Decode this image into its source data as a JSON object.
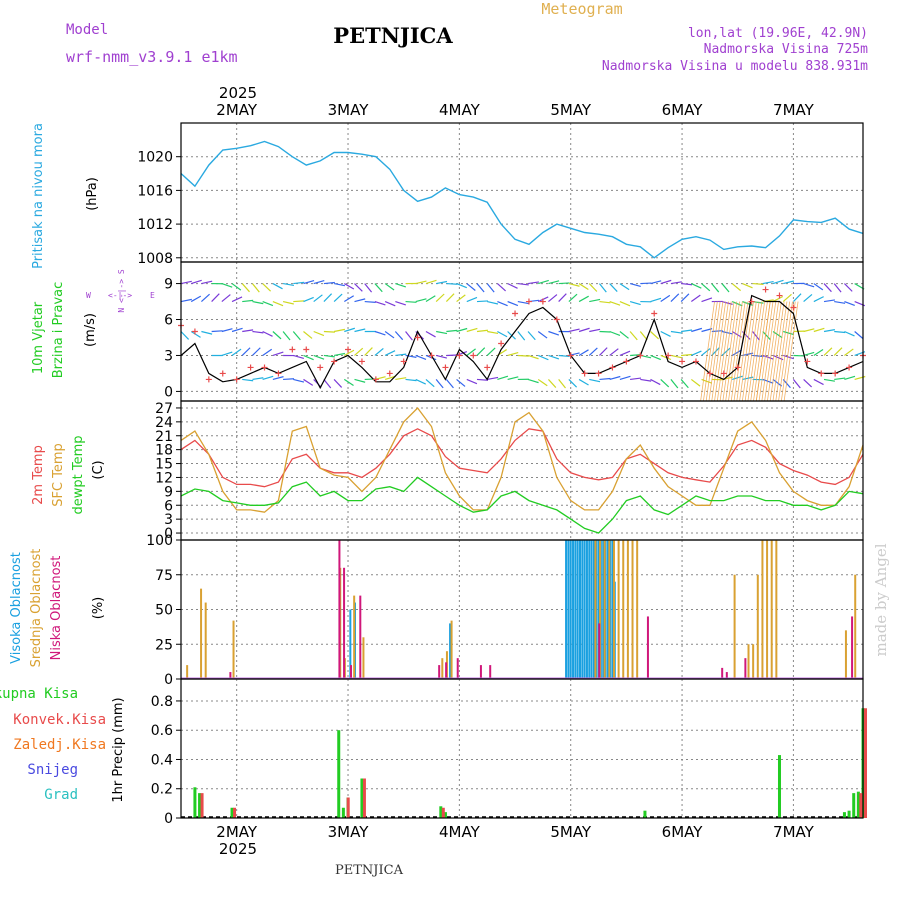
{
  "header": {
    "model_label": "Model",
    "model_name": "wrf-nmm_v3.9.1 e1km",
    "title": "PETNJICA",
    "meteogram_label": "Meteogram",
    "lonlat": "lon,lat (19.96E, 42.9N)",
    "altitude": "Nadmorska Visina 725m",
    "model_altitude": "Nadmorska Visina u modelu 838.931m",
    "year": "2025",
    "footer_title": "PETNJICA",
    "watermark": "made by Angel"
  },
  "colors": {
    "pressure": "#2aa9e0",
    "temp2m": "#e84b4b",
    "sfc_temp": "#d9a132",
    "dewpt": "#22cc22",
    "wind_speed": "#000000",
    "gust": "#e84b4b",
    "high_cloud": "#1aa0e0",
    "mid_cloud": "#d9a132",
    "low_cloud": "#d0177a",
    "total_precip": "#22cc22",
    "conv_precip": "#e84b4b",
    "frozen": "#f07820",
    "snow": "#4a4ae0",
    "grad": "#2ac0c0",
    "model_text": "#a040d0",
    "meteogram_text": "#e0b050"
  },
  "x_axis": {
    "day_labels": [
      "2MAY",
      "3MAY",
      "4MAY",
      "5MAY",
      "6MAY",
      "7MAY"
    ],
    "day_offsets_hours": [
      0,
      24,
      48,
      72,
      96,
      120
    ],
    "xlim_hours": [
      -12,
      135
    ]
  },
  "chart_data": [
    {
      "type": "line",
      "id": "pressure",
      "ylabel": "Pritisak na nivou mora",
      "unit": "(hPa)",
      "ylim": [
        1007.5,
        1024
      ],
      "yticks": [
        1008,
        1012,
        1016,
        1020
      ],
      "grid": true,
      "series": [
        {
          "x": [
            -12,
            -9,
            -6,
            -3,
            0,
            3,
            6,
            9,
            12,
            15,
            18,
            21,
            24,
            27,
            30,
            33,
            36,
            39,
            42,
            45,
            48,
            51,
            54,
            57,
            60,
            63,
            66,
            69,
            72,
            75,
            78,
            81,
            84,
            87,
            90,
            93,
            96,
            99,
            102,
            105,
            108,
            111,
            114,
            117,
            120,
            123,
            126,
            129,
            132,
            135
          ],
          "y": [
            1018,
            1016.5,
            1019,
            1020.8,
            1021,
            1021.3,
            1021.8,
            1021.2,
            1020,
            1019,
            1019.5,
            1020.5,
            1020.5,
            1020.3,
            1020,
            1018.5,
            1016,
            1014.7,
            1015.2,
            1016.3,
            1015.5,
            1015.2,
            1014.6,
            1012,
            1010.2,
            1009.6,
            1011,
            1012,
            1011.5,
            1011,
            1010.8,
            1010.5,
            1009.6,
            1009.3,
            1008,
            1009.2,
            1010.2,
            1010.5,
            1010.1,
            1009,
            1009.3,
            1009.4,
            1009.2,
            1010.6,
            1012.5,
            1012.3,
            1012.2,
            1012.7,
            1011.4,
            1010.9
          ]
        }
      ]
    },
    {
      "type": "line",
      "id": "wind",
      "ylabel": "10m Vjetar Brzina i Pravac",
      "unit": "(m/s)",
      "direction_legend": [
        "N",
        "S",
        "W",
        "E"
      ],
      "ylim": [
        -0.8,
        10.8
      ],
      "yticks": [
        0,
        3,
        6,
        9
      ],
      "grid": true,
      "series": [
        {
          "name": "speed",
          "x": [
            -12,
            -9,
            -6,
            -3,
            0,
            3,
            6,
            9,
            12,
            15,
            18,
            21,
            24,
            27,
            30,
            33,
            36,
            39,
            42,
            45,
            48,
            51,
            54,
            57,
            60,
            63,
            66,
            69,
            72,
            75,
            78,
            81,
            84,
            87,
            90,
            93,
            96,
            99,
            102,
            105,
            108,
            111,
            114,
            117,
            120,
            123,
            126,
            129,
            132,
            135
          ],
          "y": [
            3,
            4,
            1.5,
            0.8,
            1,
            1.5,
            2,
            1.5,
            2,
            2.5,
            0.3,
            2.5,
            3,
            2,
            0.8,
            0.8,
            2,
            5,
            3,
            1,
            3.5,
            2.5,
            1,
            3.5,
            5,
            6.5,
            7,
            6,
            3,
            1.5,
            1.5,
            2,
            2.5,
            3,
            6,
            2.5,
            2,
            2.5,
            1.5,
            1,
            2,
            8,
            7.5,
            7.5,
            6.5,
            2,
            1.5,
            1.5,
            2,
            2.5
          ]
        },
        {
          "name": "gust",
          "x": [
            -12,
            -9,
            -6,
            -3,
            0,
            3,
            6,
            9,
            12,
            15,
            18,
            21,
            24,
            27,
            30,
            33,
            36,
            39,
            42,
            45,
            48,
            51,
            54,
            57,
            60,
            63,
            66,
            69,
            72,
            75,
            78,
            81,
            84,
            87,
            90,
            93,
            96,
            99,
            102,
            105,
            108,
            111,
            114,
            117,
            120,
            123,
            126,
            129,
            132,
            135
          ],
          "y": [
            5.5,
            5,
            1,
            1.5,
            1,
            2,
            2,
            1.5,
            3.5,
            3.5,
            2,
            2.5,
            3.5,
            2.5,
            1,
            1.5,
            2.5,
            4.5,
            3,
            2,
            3,
            3,
            2,
            4,
            6.5,
            7.5,
            7.5,
            6,
            3,
            1.5,
            1.5,
            2,
            2.5,
            3,
            6.5,
            3,
            2.5,
            2.5,
            1.5,
            1.5,
            2,
            7.5,
            8.5,
            8,
            7,
            2.5,
            1.5,
            1.5,
            2,
            3
          ]
        }
      ]
    },
    {
      "type": "line",
      "id": "temperature",
      "ylabel": "2m Temp / SFC Temp / dewpt Temp",
      "unit": "(C)",
      "ylim": [
        -1.5,
        28.5
      ],
      "yticks": [
        0,
        3,
        6,
        9,
        12,
        15,
        18,
        21,
        24,
        27
      ],
      "grid": true,
      "series": [
        {
          "name": "2m Temp",
          "x": [
            -12,
            -9,
            -6,
            -3,
            0,
            3,
            6,
            9,
            12,
            15,
            18,
            21,
            24,
            27,
            30,
            33,
            36,
            39,
            42,
            45,
            48,
            51,
            54,
            57,
            60,
            63,
            66,
            69,
            72,
            75,
            78,
            81,
            84,
            87,
            90,
            93,
            96,
            99,
            102,
            105,
            108,
            111,
            114,
            117,
            120,
            123,
            126,
            129,
            132,
            135
          ],
          "y": [
            18,
            20,
            17,
            12,
            10.5,
            10.5,
            10,
            11,
            16,
            17,
            14,
            13,
            13,
            12,
            14,
            17,
            21,
            22.5,
            21,
            16.5,
            14,
            13.5,
            13,
            16,
            20,
            22.5,
            22,
            16,
            13,
            12,
            11.5,
            12,
            16,
            17,
            15,
            13,
            12,
            11.5,
            11,
            14.5,
            19,
            20,
            18.5,
            15,
            13.5,
            12.5,
            11,
            10.5,
            12,
            17
          ]
        },
        {
          "name": "SFC Temp",
          "x": [
            -12,
            -9,
            -6,
            -3,
            0,
            3,
            6,
            9,
            12,
            15,
            18,
            21,
            24,
            27,
            30,
            33,
            36,
            39,
            42,
            45,
            48,
            51,
            54,
            57,
            60,
            63,
            66,
            69,
            72,
            75,
            78,
            81,
            84,
            87,
            90,
            93,
            96,
            99,
            102,
            105,
            108,
            111,
            114,
            117,
            120,
            123,
            126,
            129,
            132,
            135
          ],
          "y": [
            20,
            22,
            17,
            9,
            5,
            5,
            4.5,
            7,
            22,
            23,
            14,
            12.5,
            12,
            9,
            12,
            18,
            24,
            27,
            23,
            13,
            8,
            5,
            5,
            12,
            24,
            26,
            22,
            12,
            7,
            5,
            5,
            9,
            16,
            19,
            14,
            10,
            8,
            6,
            6,
            14,
            22,
            24,
            20,
            13,
            9,
            7,
            6,
            6,
            10,
            19
          ]
        },
        {
          "name": "dewpt Temp",
          "x": [
            -12,
            -9,
            -6,
            -3,
            0,
            3,
            6,
            9,
            12,
            15,
            18,
            21,
            24,
            27,
            30,
            33,
            36,
            39,
            42,
            45,
            48,
            51,
            54,
            57,
            60,
            63,
            66,
            69,
            72,
            75,
            78,
            81,
            84,
            87,
            90,
            93,
            96,
            99,
            102,
            105,
            108,
            111,
            114,
            117,
            120,
            123,
            126,
            129,
            132,
            135
          ],
          "y": [
            8,
            9.5,
            9,
            7,
            6.5,
            6,
            6,
            6.5,
            10,
            11,
            8,
            9,
            7,
            7,
            9.5,
            10,
            9,
            12,
            10,
            8,
            6,
            4.5,
            5,
            8,
            9,
            7,
            6,
            5,
            3,
            1,
            0,
            3,
            7,
            8,
            5,
            4,
            6,
            8,
            7,
            7,
            8,
            8,
            7,
            7,
            6,
            6,
            5,
            6,
            9,
            8.5
          ]
        }
      ]
    },
    {
      "type": "bar",
      "id": "cloud",
      "ylabel": "Visoka Oblacnost / Srednja Oblacnost / Niska Oblacnost",
      "unit": "(%)",
      "ylim": [
        0,
        100
      ],
      "yticks": [
        0,
        25,
        50,
        75,
        100
      ],
      "grid": true,
      "series": [
        {
          "name": "Visoka Oblacnost",
          "x": [
            24.5,
            25.5,
            46,
            71,
            71.5,
            72,
            72.5,
            73,
            73.5,
            74,
            74.5,
            75,
            75.5,
            76,
            76.5,
            77,
            77.5,
            78,
            78.5,
            79,
            79.5,
            80,
            80.5,
            81,
            81.5
          ],
          "values": [
            50,
            55,
            40,
            100,
            100,
            100,
            100,
            100,
            100,
            100,
            100,
            100,
            100,
            100,
            100,
            100,
            100,
            100,
            100,
            100,
            100,
            100,
            100,
            100,
            70
          ]
        },
        {
          "name": "Srednja Oblacnost",
          "x": [
            -11,
            -8,
            -7,
            -1,
            22,
            23,
            25,
            27,
            44,
            45,
            46,
            77,
            78,
            79,
            80,
            81,
            82,
            83,
            84,
            85,
            86,
            107,
            110,
            111,
            112,
            113,
            114,
            115,
            116,
            131,
            133
          ],
          "values": [
            10,
            65,
            55,
            42,
            80,
            15,
            60,
            30,
            15,
            20,
            42,
            100,
            100,
            100,
            100,
            100,
            100,
            100,
            100,
            100,
            100,
            75,
            25,
            25,
            75,
            100,
            100,
            100,
            100,
            35,
            75
          ]
        },
        {
          "name": "Niska Oblacnost",
          "x": [
            -2,
            21.5,
            22.5,
            24,
            26,
            43,
            44.5,
            47,
            52,
            54,
            77.5,
            88,
            104,
            105,
            109,
            132
          ],
          "values": [
            5,
            100,
            80,
            10,
            60,
            10,
            12,
            15,
            10,
            10,
            40,
            45,
            8,
            5,
            15,
            45
          ]
        }
      ]
    },
    {
      "type": "bar",
      "id": "precip",
      "ylabel": "1hr Precip",
      "unit": "(mm)",
      "legend": [
        "Ukupna Kisa",
        "Konvek.Kisa",
        "Zaledj.Kisa",
        "Snijeg",
        "Grad"
      ],
      "ylim": [
        0,
        0.95
      ],
      "yticks": [
        0,
        0.2,
        0.4,
        0.6,
        0.8
      ],
      "grid": true,
      "series": [
        {
          "name": "Ukupna Kisa",
          "x": [
            -9,
            -8,
            -1,
            22,
            23,
            24,
            27,
            44,
            45,
            88,
            117,
            131,
            132,
            133,
            134,
            135
          ],
          "values": [
            0.21,
            0.17,
            0.07,
            0.6,
            0.07,
            0.14,
            0.27,
            0.08,
            0.04,
            0.05,
            0.43,
            0.04,
            0.05,
            0.17,
            0.18,
            0.75
          ]
        },
        {
          "name": "Konvek.Kisa",
          "x": [
            -8,
            -1,
            23.5,
            27,
            44,
            134,
            135
          ],
          "values": [
            0.17,
            0.07,
            0.14,
            0.27,
            0.07,
            0.17,
            0.75
          ]
        }
      ]
    }
  ]
}
